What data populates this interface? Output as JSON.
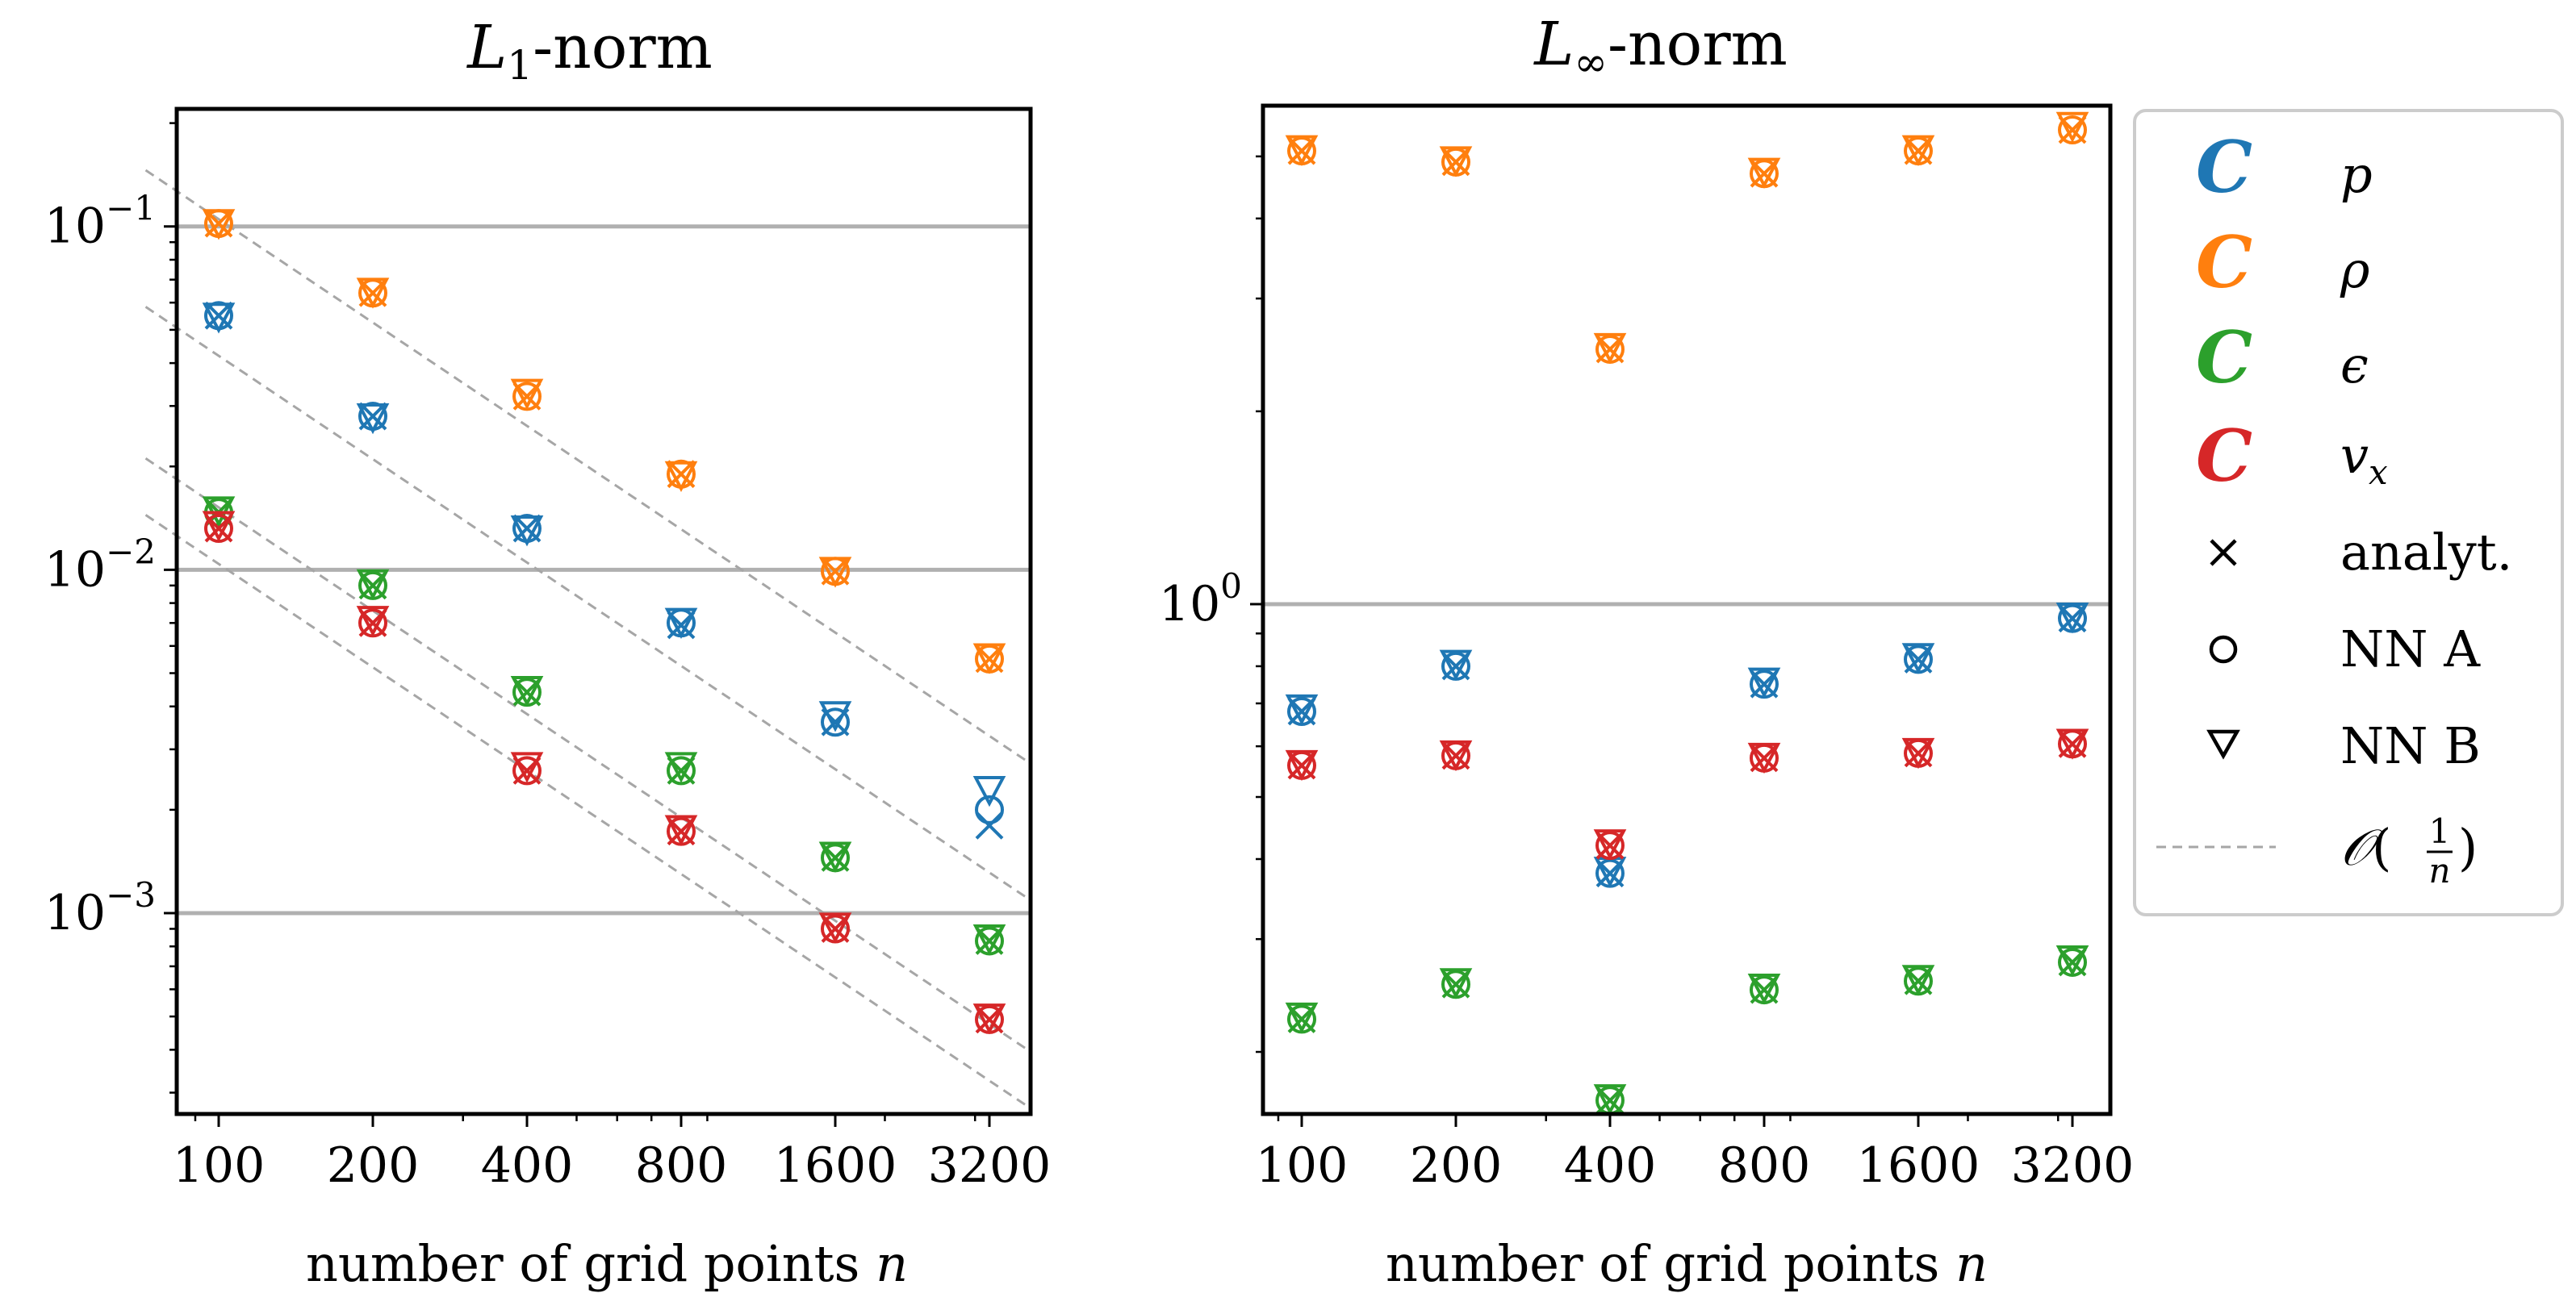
{
  "chart_data": [
    {
      "type": "scatter",
      "title": "L₁-norm",
      "title_main": "L",
      "title_sub": "1",
      "title_suffix": "-norm",
      "xscale": "log2",
      "yscale": "log",
      "x": [
        100,
        200,
        400,
        800,
        1600,
        3200
      ],
      "xticklabels": [
        "100",
        "200",
        "400",
        "800",
        "1600",
        "3200"
      ],
      "xlabel_text": "number of grid points ",
      "xlabel_var": "n",
      "ylim": [
        0.00026,
        0.22
      ],
      "yticks": [
        {
          "value": 0.1,
          "base": "10",
          "exp": "−1"
        },
        {
          "value": 0.01,
          "base": "10",
          "exp": "−2"
        },
        {
          "value": 0.001,
          "base": "10",
          "exp": "−3"
        }
      ],
      "hlines": [
        0.1,
        0.01,
        0.001
      ],
      "series": [
        {
          "name": "p",
          "color": "#1f77b4",
          "analyt": [
            0.055,
            0.028,
            0.0132,
            0.0069,
            0.0036,
            0.0018
          ],
          "nnA": [
            0.055,
            0.028,
            0.0132,
            0.007,
            0.0036,
            0.002
          ],
          "nnB": [
            0.055,
            0.028,
            0.0132,
            0.0071,
            0.0038,
            0.0023
          ]
        },
        {
          "name": "rho",
          "color": "#ff7f0e",
          "analyt": [
            0.102,
            0.064,
            0.032,
            0.019,
            0.0099,
            0.0055
          ],
          "nnA": [
            0.102,
            0.064,
            0.032,
            0.019,
            0.0099,
            0.0055
          ],
          "nnB": [
            0.103,
            0.065,
            0.033,
            0.019,
            0.01,
            0.0056
          ]
        },
        {
          "name": "epsilon",
          "color": "#2ca02c",
          "analyt": [
            0.0147,
            0.009,
            0.0044,
            0.0026,
            0.00145,
            0.00083
          ],
          "nnA": [
            0.0147,
            0.009,
            0.0044,
            0.0026,
            0.00145,
            0.00083
          ],
          "nnB": [
            0.015,
            0.0092,
            0.0045,
            0.0027,
            0.00148,
            0.00085
          ]
        },
        {
          "name": "v_x",
          "color": "#d62728",
          "analyt": [
            0.0132,
            0.007,
            0.0026,
            0.00173,
            0.0009,
            0.00049
          ],
          "nnA": [
            0.0132,
            0.007,
            0.0026,
            0.00173,
            0.0009,
            0.00049
          ],
          "nnB": [
            0.0136,
            0.0072,
            0.0027,
            0.00177,
            0.00092,
            0.0005
          ]
        }
      ],
      "reference_lines": [
        {
          "at_x": 100,
          "value": 0.105
        },
        {
          "at_x": 100,
          "value": 0.042
        },
        {
          "at_x": 100,
          "value": 0.0152
        },
        {
          "at_x": 100,
          "value": 0.0104
        }
      ]
    },
    {
      "type": "scatter",
      "title": "L∞-norm",
      "title_main": "L",
      "title_sub": "∞",
      "title_suffix": "-norm",
      "xscale": "log2",
      "yscale": "log",
      "x": [
        100,
        200,
        400,
        800,
        1600,
        3200
      ],
      "xticklabels": [
        "100",
        "200",
        "400",
        "800",
        "1600",
        "3200"
      ],
      "xlabel_text": "number of grid points ",
      "xlabel_var": "n",
      "ylim": [
        0.16,
        6.0
      ],
      "yticks": [
        {
          "value": 1.0,
          "base": "10",
          "exp": "0"
        }
      ],
      "hlines": [
        1.0
      ],
      "series": [
        {
          "name": "p",
          "color": "#1f77b4",
          "analyt": [
            0.68,
            0.8,
            0.38,
            0.75,
            0.82,
            0.95
          ],
          "nnA": [
            0.68,
            0.8,
            0.38,
            0.75,
            0.82,
            0.95
          ],
          "nnB": [
            0.69,
            0.81,
            0.385,
            0.76,
            0.83,
            0.96
          ]
        },
        {
          "name": "rho",
          "color": "#ff7f0e",
          "analyt": [
            5.1,
            4.9,
            2.5,
            4.7,
            5.1,
            5.5
          ],
          "nnA": [
            5.1,
            4.9,
            2.5,
            4.7,
            5.1,
            5.5
          ],
          "nnB": [
            5.15,
            4.95,
            2.53,
            4.75,
            5.15,
            5.6
          ]
        },
        {
          "name": "epsilon",
          "color": "#2ca02c",
          "analyt": [
            0.225,
            0.255,
            0.168,
            0.25,
            0.258,
            0.276
          ],
          "nnA": [
            0.225,
            0.255,
            0.168,
            0.25,
            0.258,
            0.276
          ],
          "nnB": [
            0.228,
            0.258,
            0.17,
            0.253,
            0.261,
            0.28
          ]
        },
        {
          "name": "v_x",
          "color": "#d62728",
          "analyt": [
            0.56,
            0.58,
            0.42,
            0.575,
            0.585,
            0.605
          ],
          "nnA": [
            0.56,
            0.58,
            0.42,
            0.575,
            0.585,
            0.605
          ],
          "nnB": [
            0.565,
            0.585,
            0.425,
            0.58,
            0.59,
            0.61
          ]
        }
      ]
    }
  ],
  "legend": {
    "placement": "right",
    "entries": [
      {
        "kind": "color",
        "glyph": "C",
        "color": "#1f77b4",
        "base": "p",
        "sub": ""
      },
      {
        "kind": "color",
        "glyph": "C",
        "color": "#ff7f0e",
        "base": "ρ",
        "sub": ""
      },
      {
        "kind": "color",
        "glyph": "C",
        "color": "#2ca02c",
        "base": "ϵ",
        "sub": ""
      },
      {
        "kind": "color",
        "glyph": "C",
        "color": "#d62728",
        "base": "v",
        "sub": "x"
      },
      {
        "kind": "marker",
        "marker": "x",
        "label": "analyt."
      },
      {
        "kind": "marker",
        "marker": "o",
        "label": "NN A"
      },
      {
        "kind": "marker",
        "marker": "v",
        "label": "NN B"
      },
      {
        "kind": "line",
        "big_o": "𝒪",
        "num": "1",
        "den": "n"
      }
    ]
  }
}
